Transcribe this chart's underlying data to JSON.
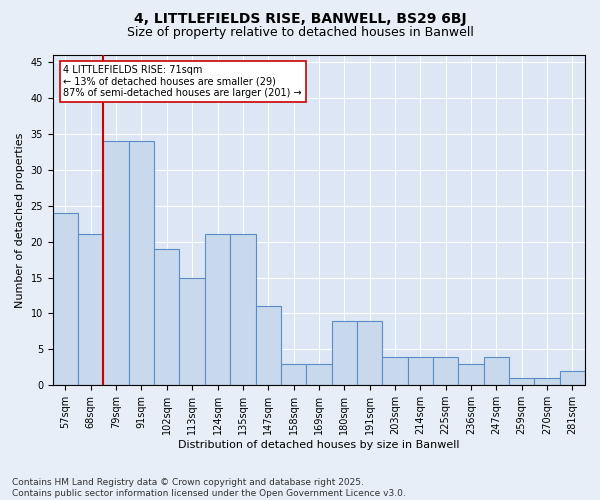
{
  "title1": "4, LITTLEFIELDS RISE, BANWELL, BS29 6BJ",
  "title2": "Size of property relative to detached houses in Banwell",
  "xlabel": "Distribution of detached houses by size in Banwell",
  "ylabel": "Number of detached properties",
  "categories": [
    "57sqm",
    "68sqm",
    "79sqm",
    "91sqm",
    "102sqm",
    "113sqm",
    "124sqm",
    "135sqm",
    "147sqm",
    "158sqm",
    "169sqm",
    "180sqm",
    "191sqm",
    "203sqm",
    "214sqm",
    "225sqm",
    "236sqm",
    "247sqm",
    "259sqm",
    "270sqm",
    "281sqm"
  ],
  "values": [
    24,
    21,
    34,
    34,
    19,
    15,
    21,
    21,
    11,
    3,
    3,
    9,
    9,
    4,
    4,
    4,
    3,
    4,
    1,
    1,
    2
  ],
  "bar_color": "#c9d9ed",
  "bar_edge_color": "#5b8dc4",
  "bar_edge_width": 0.8,
  "ylim": [
    0,
    46
  ],
  "yticks": [
    0,
    5,
    10,
    15,
    20,
    25,
    30,
    35,
    40,
    45
  ],
  "vline_color": "#cc0000",
  "annotation_text": "4 LITTLEFIELDS RISE: 71sqm\n← 13% of detached houses are smaller (29)\n87% of semi-detached houses are larger (201) →",
  "annotation_box_color": "white",
  "annotation_box_edge_color": "#cc0000",
  "footer_text": "Contains HM Land Registry data © Crown copyright and database right 2025.\nContains public sector information licensed under the Open Government Licence v3.0.",
  "bg_color": "#e8eef7",
  "plot_bg_color": "#dce6f5",
  "grid_color": "white",
  "title_fontsize": 10,
  "subtitle_fontsize": 9,
  "tick_fontsize": 7,
  "label_fontsize": 8,
  "footer_fontsize": 6.5
}
